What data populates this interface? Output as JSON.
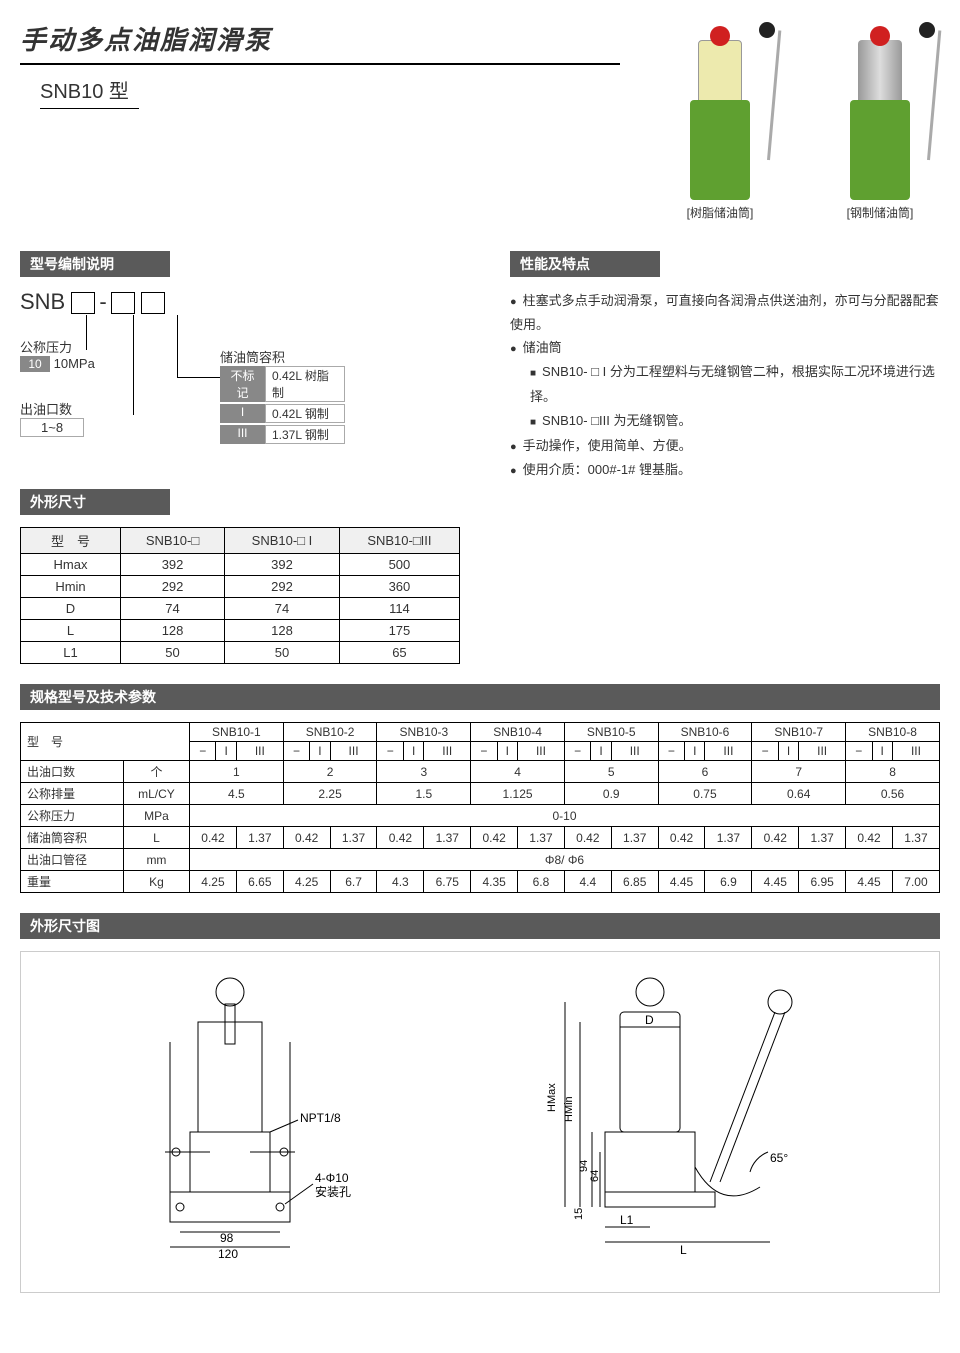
{
  "title": "手动多点油脂润滑泵",
  "subtitle": "SNB10 型",
  "productImages": [
    {
      "caption": "[树脂储油筒]",
      "cylClass": "cyl-plastic"
    },
    {
      "caption": "[钢制储油筒]",
      "cylClass": "cyl-steel"
    }
  ],
  "sections": {
    "modelCoding": "型号编制说明",
    "features": "性能及特点",
    "dimensions": "外形尺寸",
    "specs": "规格型号及技术参数",
    "drawing": "外形尺寸图"
  },
  "modelDiagram": {
    "prefix": "SNB",
    "pressure": {
      "label": "公称压力",
      "code": "10",
      "value": "10MPa"
    },
    "outlets": {
      "label": "出油口数",
      "value": "1~8"
    },
    "tank": {
      "label": "储油筒容积",
      "rows": [
        {
          "code": "不标记",
          "value": "0.42L 树脂制"
        },
        {
          "code": "I",
          "value": "0.42L 钢制"
        },
        {
          "code": "III",
          "value": "1.37L 钢制"
        }
      ]
    }
  },
  "features": [
    {
      "text": "柱塞式多点手动润滑泵，可直接向各润滑点供送油剂，亦可与分配器配套使用。"
    },
    {
      "text": "储油筒",
      "sub": [
        "SNB10- □ I 分为工程塑料与无缝钢管二种，根据实际工况环境进行选择。",
        "SNB10- □III 为无缝钢管。"
      ]
    },
    {
      "text": "手动操作，使用简单、方便。"
    },
    {
      "text": "使用介质：000#-1# 锂基脂。"
    }
  ],
  "dimTable": {
    "headers": [
      "型　号",
      "SNB10-□",
      "SNB10-□ I",
      "SNB10-□III"
    ],
    "rows": [
      [
        "Hmax",
        "392",
        "392",
        "500"
      ],
      [
        "Hmin",
        "292",
        "292",
        "360"
      ],
      [
        "D",
        "74",
        "74",
        "114"
      ],
      [
        "L",
        "128",
        "128",
        "175"
      ],
      [
        "L1",
        "50",
        "50",
        "65"
      ]
    ]
  },
  "specTable": {
    "modelHeader": "型　号",
    "models": [
      "SNB10-1",
      "SNB10-2",
      "SNB10-3",
      "SNB10-4",
      "SNB10-5",
      "SNB10-6",
      "SNB10-7",
      "SNB10-8"
    ],
    "variants": [
      "−",
      "I",
      "III"
    ],
    "rows": [
      {
        "label": "出油口数",
        "unit": "个",
        "span": 3,
        "vals": [
          "1",
          "2",
          "3",
          "4",
          "5",
          "6",
          "7",
          "8"
        ]
      },
      {
        "label": "公称排量",
        "unit": "mL/CY",
        "span": 3,
        "vals": [
          "4.5",
          "2.25",
          "1.5",
          "1.125",
          "0.9",
          "0.75",
          "0.64",
          "0.56"
        ]
      },
      {
        "label": "公称压力",
        "unit": "MPa",
        "full": "0-10"
      },
      {
        "label": "储油筒容积",
        "unit": "L",
        "splitVals": [
          "0.42",
          "1.37"
        ],
        "repeat": 8
      },
      {
        "label": "出油口管径",
        "unit": "mm",
        "full": "Φ8/ Φ6"
      },
      {
        "label": "重量",
        "unit": "Kg",
        "pairs": [
          [
            "4.25",
            "6.65"
          ],
          [
            "4.25",
            "6.7"
          ],
          [
            "4.3",
            "6.75"
          ],
          [
            "4.35",
            "6.8"
          ],
          [
            "4.4",
            "6.85"
          ],
          [
            "4.45",
            "6.9"
          ],
          [
            "4.45",
            "6.95"
          ],
          [
            "4.45",
            "7.00"
          ]
        ]
      }
    ]
  },
  "drawing": {
    "labels": {
      "npt": "NPT1/8",
      "holes": "4-Φ10",
      "holesDesc": "安装孔",
      "w1": "98",
      "w2": "120",
      "hmax": "HMax",
      "hmin": "HMin",
      "h1": "94",
      "h2": "64",
      "h3": "15",
      "d": "D",
      "l1": "L1",
      "l": "L",
      "angle": "65°"
    }
  },
  "colors": {
    "headerBg": "#5a5a5a",
    "pumpGreen": "#5FA030",
    "knobRed": "#d02020"
  }
}
